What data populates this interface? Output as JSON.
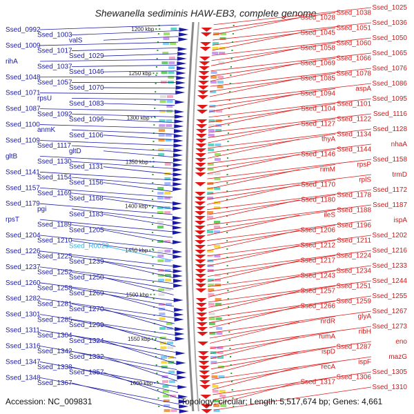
{
  "title": "Shewanella sediminis HAW-EB3, complete genome",
  "footer": {
    "accession": "Accession: NC_009831",
    "summary": "Topology: circular; Length: 5,517,674 bp; Genes: 4,661"
  },
  "colors": {
    "forward": "#1a1aa6",
    "reverse": "#e01818",
    "rna": "#3ab0e0",
    "backbone": "#888888"
  },
  "ruler": [
    {
      "label": "1200 kbp"
    },
    {
      "label": "1250 kbp"
    },
    {
      "label": "1300 kbp"
    },
    {
      "label": "1350 kbp"
    },
    {
      "label": "1400 kbp"
    },
    {
      "label": "1450 kbp"
    },
    {
      "label": "1500 kbp"
    },
    {
      "label": "1550 kbp"
    },
    {
      "label": "1600 kbp"
    }
  ],
  "left_labels": [
    {
      "text": "Ssed_0992"
    },
    {
      "text": "Ssed_1003"
    },
    {
      "text": "valS"
    },
    {
      "text": "Ssed_1009"
    },
    {
      "text": "Ssed_1017"
    },
    {
      "text": "Ssed_1029"
    },
    {
      "text": "rihA"
    },
    {
      "text": "Ssed_1037"
    },
    {
      "text": "Ssed_1046"
    },
    {
      "text": "Ssed_1048"
    },
    {
      "text": "Ssed_1057"
    },
    {
      "text": "Ssed_1070"
    },
    {
      "text": "Ssed_1071"
    },
    {
      "text": "rpsU"
    },
    {
      "text": "Ssed_1083"
    },
    {
      "text": "Ssed_1087"
    },
    {
      "text": "Ssed_1092"
    },
    {
      "text": "Ssed_1096"
    },
    {
      "text": "Ssed_1100"
    },
    {
      "text": "anmK"
    },
    {
      "text": "Ssed_1106"
    },
    {
      "text": "Ssed_1109"
    },
    {
      "text": "Ssed_1117"
    },
    {
      "text": "gltD"
    },
    {
      "text": "gltB"
    },
    {
      "text": "Ssed_1130"
    },
    {
      "text": "Ssed_1131"
    },
    {
      "text": "Ssed_1141"
    },
    {
      "text": "Ssed_1154"
    },
    {
      "text": "Ssed_1156"
    },
    {
      "text": "Ssed_1157"
    },
    {
      "text": "Ssed_1169"
    },
    {
      "text": "Ssed_1168"
    },
    {
      "text": "Ssed_1179"
    },
    {
      "text": "pgi"
    },
    {
      "text": "Ssed_1183"
    },
    {
      "text": "rpsT"
    },
    {
      "text": "Ssed_1189"
    },
    {
      "text": "Ssed_1205"
    },
    {
      "text": "Ssed_1204"
    },
    {
      "text": "Ssed_1210"
    },
    {
      "text": "Ssed_R0029",
      "rna": true
    },
    {
      "text": "Ssed_1226"
    },
    {
      "text": "Ssed_1225"
    },
    {
      "text": "Ssed_1239"
    },
    {
      "text": "Ssed_1237"
    },
    {
      "text": "Ssed_1252"
    },
    {
      "text": "Ssed_1250"
    },
    {
      "text": "Ssed_1260"
    },
    {
      "text": "Ssed_1258"
    },
    {
      "text": "Ssed_1269"
    },
    {
      "text": "Ssed_1282"
    },
    {
      "text": "Ssed_1281"
    },
    {
      "text": "Ssed_1270"
    },
    {
      "text": "Ssed_1301"
    },
    {
      "text": "Ssed_1285"
    },
    {
      "text": "Ssed_1299"
    },
    {
      "text": "Ssed_1311"
    },
    {
      "text": "Ssed_1304"
    },
    {
      "text": "Ssed_1324"
    },
    {
      "text": "Ssed_1316"
    },
    {
      "text": "Ssed_1342"
    },
    {
      "text": "Ssed_1332"
    },
    {
      "text": "Ssed_1347"
    },
    {
      "text": "Ssed_1338"
    },
    {
      "text": "Ssed_1357"
    },
    {
      "text": "Ssed_1348"
    },
    {
      "text": "Ssed_1367"
    }
  ],
  "right_labels": [
    {
      "text": "Ssed_1025"
    },
    {
      "text": "Ssed_1038"
    },
    {
      "text": "Ssed_1028"
    },
    {
      "text": "Ssed_1036"
    },
    {
      "text": "Ssed_1051"
    },
    {
      "text": "Ssed_1045"
    },
    {
      "text": "Ssed_1050"
    },
    {
      "text": "Ssed_1060"
    },
    {
      "text": "Ssed_1058"
    },
    {
      "text": "Ssed_1065"
    },
    {
      "text": "Ssed_1066"
    },
    {
      "text": "Ssed_1069"
    },
    {
      "text": "Ssed_1076"
    },
    {
      "text": "Ssed_1078"
    },
    {
      "text": "Ssed_1085"
    },
    {
      "text": "Ssed_1086"
    },
    {
      "text": "aspA"
    },
    {
      "text": "Ssed_1094"
    },
    {
      "text": "Ssed_1095"
    },
    {
      "text": "Ssed_1101"
    },
    {
      "text": "Ssed_1104"
    },
    {
      "text": "Ssed_1116"
    },
    {
      "text": "Ssed_1122"
    },
    {
      "text": "Ssed_1127"
    },
    {
      "text": "Ssed_1128"
    },
    {
      "text": "Ssed_1134"
    },
    {
      "text": "thyA"
    },
    {
      "text": "nhaA"
    },
    {
      "text": "Ssed_1144"
    },
    {
      "text": "Ssed_1146"
    },
    {
      "text": "Ssed_1158"
    },
    {
      "text": "rpsP"
    },
    {
      "text": "rimM"
    },
    {
      "text": "trmD"
    },
    {
      "text": "rplS"
    },
    {
      "text": "Ssed_1170"
    },
    {
      "text": "Ssed_1172"
    },
    {
      "text": "Ssed_1178"
    },
    {
      "text": "Ssed_1180"
    },
    {
      "text": "Ssed_1187"
    },
    {
      "text": "Ssed_1188"
    },
    {
      "text": "ileS"
    },
    {
      "text": "ispA"
    },
    {
      "text": "Ssed_1196"
    },
    {
      "text": "Ssed_1206"
    },
    {
      "text": "Ssed_1202"
    },
    {
      "text": "Ssed_1211"
    },
    {
      "text": "Ssed_1212"
    },
    {
      "text": "Ssed_1216"
    },
    {
      "text": "Ssed_1224"
    },
    {
      "text": "Ssed_1217"
    },
    {
      "text": "Ssed_1233"
    },
    {
      "text": "Ssed_1234"
    },
    {
      "text": "Ssed_1243"
    },
    {
      "text": "Ssed_1244"
    },
    {
      "text": "Ssed_1251"
    },
    {
      "text": "Ssed_1257"
    },
    {
      "text": "Ssed_1255"
    },
    {
      "text": "Ssed_1259"
    },
    {
      "text": "Ssed_1266"
    },
    {
      "text": "Ssed_1267"
    },
    {
      "text": "glyA"
    },
    {
      "text": "nrdR"
    },
    {
      "text": "Ssed_1273"
    },
    {
      "text": "ribH"
    },
    {
      "text": "rumA"
    },
    {
      "text": "eno"
    },
    {
      "text": "Ssed_1287"
    },
    {
      "text": "ispD"
    },
    {
      "text": "mazG"
    },
    {
      "text": "ispF"
    },
    {
      "text": "recA"
    },
    {
      "text": "Ssed_1305"
    },
    {
      "text": "Ssed_1306"
    },
    {
      "text": "Ssed_1317"
    },
    {
      "text": "Ssed_1310"
    }
  ]
}
